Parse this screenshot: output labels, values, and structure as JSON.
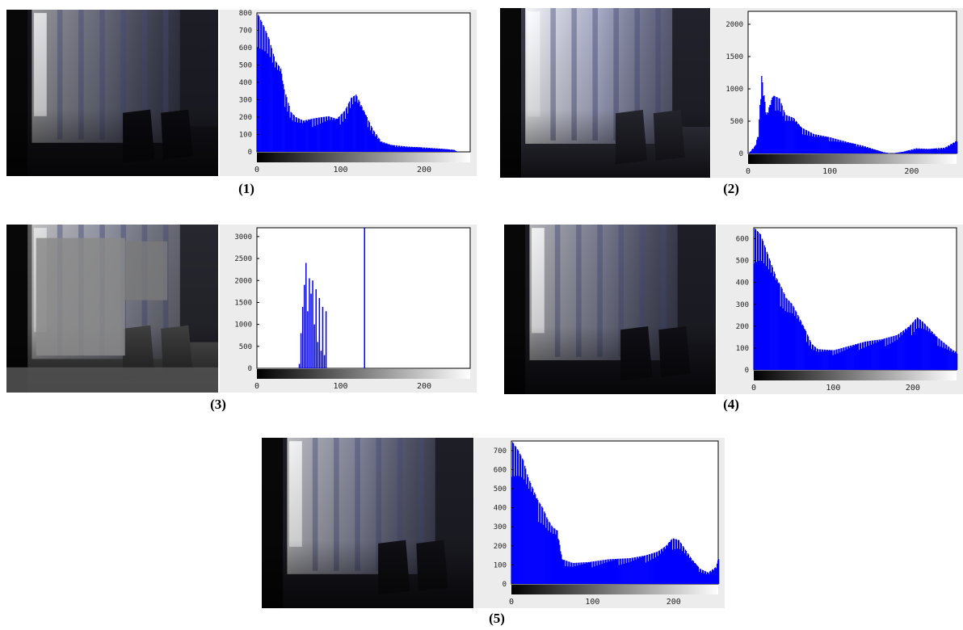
{
  "captions": [
    "(1)",
    "(2)",
    "(3)",
    "(4)",
    "(5)"
  ],
  "chart_data": [
    {
      "type": "bar",
      "title": "",
      "xlabel": "",
      "ylabel": "",
      "xlim": [
        0,
        255
      ],
      "ylim": [
        0,
        800
      ],
      "xticks": [
        "0",
        "100",
        "200"
      ],
      "yticks": [
        "0",
        "100",
        "200",
        "300",
        "400",
        "500",
        "600",
        "700",
        "800"
      ],
      "bar_color": "#0000ff",
      "profile": [
        [
          0,
          800
        ],
        [
          8,
          720
        ],
        [
          14,
          650
        ],
        [
          18,
          580
        ],
        [
          22,
          520
        ],
        [
          28,
          480
        ],
        [
          32,
          360
        ],
        [
          36,
          300
        ],
        [
          40,
          230
        ],
        [
          46,
          200
        ],
        [
          55,
          180
        ],
        [
          70,
          195
        ],
        [
          85,
          205
        ],
        [
          95,
          190
        ],
        [
          105,
          240
        ],
        [
          112,
          310
        ],
        [
          118,
          330
        ],
        [
          124,
          270
        ],
        [
          130,
          210
        ],
        [
          138,
          130
        ],
        [
          148,
          60
        ],
        [
          160,
          40
        ],
        [
          180,
          30
        ],
        [
          200,
          25
        ],
        [
          220,
          18
        ],
        [
          235,
          12
        ],
        [
          240,
          0
        ],
        [
          255,
          0
        ]
      ]
    },
    {
      "type": "bar",
      "title": "",
      "xlabel": "",
      "ylabel": "",
      "xlim": [
        0,
        255
      ],
      "ylim": [
        0,
        2200
      ],
      "xticks": [
        "0",
        "100",
        "200"
      ],
      "yticks": [
        "0",
        "500",
        "1000",
        "1500",
        "2000"
      ],
      "bar_color": "#0000ff",
      "profile": [
        [
          0,
          0
        ],
        [
          8,
          120
        ],
        [
          12,
          300
        ],
        [
          16,
          1200
        ],
        [
          22,
          600
        ],
        [
          30,
          900
        ],
        [
          38,
          850
        ],
        [
          45,
          600
        ],
        [
          55,
          550
        ],
        [
          65,
          400
        ],
        [
          80,
          300
        ],
        [
          100,
          250
        ],
        [
          120,
          180
        ],
        [
          140,
          120
        ],
        [
          155,
          60
        ],
        [
          165,
          20
        ],
        [
          175,
          0
        ],
        [
          190,
          30
        ],
        [
          205,
          80
        ],
        [
          220,
          70
        ],
        [
          240,
          90
        ],
        [
          255,
          200
        ]
      ]
    },
    {
      "type": "bar",
      "title": "",
      "xlabel": "",
      "ylabel": "",
      "xlim": [
        0,
        255
      ],
      "ylim": [
        0,
        3200
      ],
      "xticks": [
        "0",
        "100",
        "200"
      ],
      "yticks": [
        "0",
        "500",
        "1000",
        "1500",
        "2000",
        "2500",
        "3000"
      ],
      "bar_color": "#0000ff",
      "bars": [
        [
          50,
          100
        ],
        [
          52,
          800
        ],
        [
          54,
          1400
        ],
        [
          56,
          1900
        ],
        [
          58,
          2400
        ],
        [
          60,
          1300
        ],
        [
          62,
          2050
        ],
        [
          64,
          1700
        ],
        [
          66,
          2000
        ],
        [
          68,
          1000
        ],
        [
          70,
          1800
        ],
        [
          72,
          600
        ],
        [
          74,
          1600
        ],
        [
          76,
          400
        ],
        [
          78,
          1400
        ],
        [
          80,
          300
        ],
        [
          82,
          1300
        ],
        [
          128,
          3200
        ]
      ]
    },
    {
      "type": "bar",
      "title": "",
      "xlabel": "",
      "ylabel": "",
      "xlim": [
        0,
        255
      ],
      "ylim": [
        0,
        650
      ],
      "xticks": [
        "0",
        "100",
        "200"
      ],
      "yticks": [
        "0",
        "100",
        "200",
        "300",
        "400",
        "500",
        "600"
      ],
      "bar_color": "#0000ff",
      "profile": [
        [
          0,
          650
        ],
        [
          8,
          620
        ],
        [
          14,
          560
        ],
        [
          20,
          500
        ],
        [
          28,
          420
        ],
        [
          34,
          380
        ],
        [
          40,
          330
        ],
        [
          48,
          300
        ],
        [
          58,
          230
        ],
        [
          66,
          170
        ],
        [
          72,
          120
        ],
        [
          80,
          95
        ],
        [
          100,
          90
        ],
        [
          120,
          110
        ],
        [
          140,
          130
        ],
        [
          160,
          140
        ],
        [
          180,
          160
        ],
        [
          195,
          200
        ],
        [
          205,
          240
        ],
        [
          212,
          220
        ],
        [
          220,
          190
        ],
        [
          230,
          150
        ],
        [
          240,
          120
        ],
        [
          250,
          90
        ],
        [
          255,
          80
        ]
      ]
    },
    {
      "type": "bar",
      "title": "",
      "xlabel": "",
      "ylabel": "",
      "xlim": [
        0,
        255
      ],
      "ylim": [
        0,
        750
      ],
      "xticks": [
        "0",
        "100",
        "200"
      ],
      "yticks": [
        "0",
        "100",
        "200",
        "300",
        "400",
        "500",
        "600",
        "700"
      ],
      "bar_color": "#0000ff",
      "profile": [
        [
          0,
          750
        ],
        [
          8,
          700
        ],
        [
          14,
          650
        ],
        [
          20,
          560
        ],
        [
          26,
          500
        ],
        [
          32,
          440
        ],
        [
          38,
          400
        ],
        [
          44,
          340
        ],
        [
          50,
          300
        ],
        [
          56,
          280
        ],
        [
          62,
          130
        ],
        [
          75,
          110
        ],
        [
          95,
          115
        ],
        [
          120,
          130
        ],
        [
          145,
          135
        ],
        [
          165,
          150
        ],
        [
          180,
          170
        ],
        [
          190,
          200
        ],
        [
          198,
          240
        ],
        [
          206,
          230
        ],
        [
          214,
          180
        ],
        [
          222,
          130
        ],
        [
          232,
          80
        ],
        [
          242,
          60
        ],
        [
          252,
          90
        ],
        [
          255,
          140
        ]
      ]
    }
  ]
}
